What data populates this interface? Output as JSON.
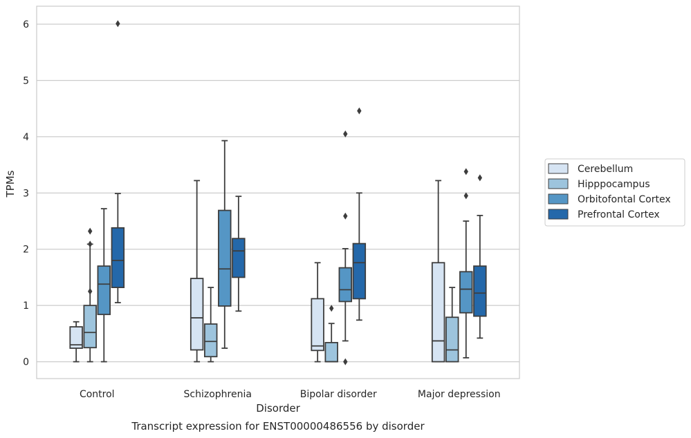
{
  "chart_data": {
    "type": "box",
    "xlabel": "Disorder",
    "ylabel": "TPMs",
    "caption": "Transcript expression for ENST00000486556 by disorder",
    "ylim": [
      -0.3,
      6.32
    ],
    "yticks": [
      0,
      1,
      2,
      3,
      4,
      5,
      6
    ],
    "grid": "horizontal",
    "legend_position": "right",
    "categories": [
      "Control",
      "Schizophrenia",
      "Bipolar disorder",
      "Major depression"
    ],
    "series": [
      {
        "name": "Cerebellum",
        "color": "#d6e4f3",
        "boxes": [
          {
            "whislo": 0.0,
            "q1": 0.24,
            "med": 0.3,
            "q3": 0.62,
            "whishi": 0.71,
            "fliers": []
          },
          {
            "whislo": 0.0,
            "q1": 0.21,
            "med": 0.78,
            "q3": 1.48,
            "whishi": 3.22,
            "fliers": []
          },
          {
            "whislo": 0.0,
            "q1": 0.2,
            "med": 0.28,
            "q3": 1.12,
            "whishi": 1.76,
            "fliers": []
          },
          {
            "whislo": 0.0,
            "q1": 0.0,
            "med": 0.37,
            "q3": 1.76,
            "whishi": 3.22,
            "fliers": []
          }
        ]
      },
      {
        "name": "Hipppocampus",
        "color": "#9dc4dd",
        "boxes": [
          {
            "whislo": 0.0,
            "q1": 0.25,
            "med": 0.52,
            "q3": 1.0,
            "whishi": 2.09,
            "fliers": [
              1.25,
              2.09,
              2.32
            ]
          },
          {
            "whislo": 0.0,
            "q1": 0.09,
            "med": 0.36,
            "q3": 0.67,
            "whishi": 1.32,
            "fliers": []
          },
          {
            "whislo": 0.0,
            "q1": 0.0,
            "med": 0.0,
            "q3": 0.34,
            "whishi": 0.68,
            "fliers": [
              0.95
            ]
          },
          {
            "whislo": 0.0,
            "q1": 0.0,
            "med": 0.21,
            "q3": 0.79,
            "whishi": 1.32,
            "fliers": []
          }
        ]
      },
      {
        "name": "Orbitofontal Cortex",
        "color": "#5596c5",
        "boxes": [
          {
            "whislo": 0.0,
            "q1": 0.84,
            "med": 1.38,
            "q3": 1.7,
            "whishi": 2.72,
            "fliers": []
          },
          {
            "whislo": 0.24,
            "q1": 0.99,
            "med": 1.65,
            "q3": 2.69,
            "whishi": 3.93,
            "fliers": []
          },
          {
            "whislo": 0.37,
            "q1": 1.07,
            "med": 1.28,
            "q3": 1.67,
            "whishi": 2.01,
            "fliers": [
              0.0,
              2.59,
              4.05
            ]
          },
          {
            "whislo": 0.07,
            "q1": 0.87,
            "med": 1.29,
            "q3": 1.6,
            "whishi": 2.5,
            "fliers": [
              2.95,
              3.38
            ]
          }
        ]
      },
      {
        "name": "Prefrontal Cortex",
        "color": "#2468aa",
        "boxes": [
          {
            "whislo": 1.05,
            "q1": 1.32,
            "med": 1.8,
            "q3": 2.38,
            "whishi": 2.99,
            "fliers": [
              6.01
            ]
          },
          {
            "whislo": 0.9,
            "q1": 1.5,
            "med": 1.97,
            "q3": 2.19,
            "whishi": 2.94,
            "fliers": []
          },
          {
            "whislo": 0.74,
            "q1": 1.12,
            "med": 1.76,
            "q3": 2.1,
            "whishi": 3.0,
            "fliers": [
              4.46
            ]
          },
          {
            "whislo": 0.42,
            "q1": 0.81,
            "med": 1.22,
            "q3": 1.7,
            "whishi": 2.6,
            "fliers": [
              3.27
            ]
          }
        ]
      }
    ]
  }
}
